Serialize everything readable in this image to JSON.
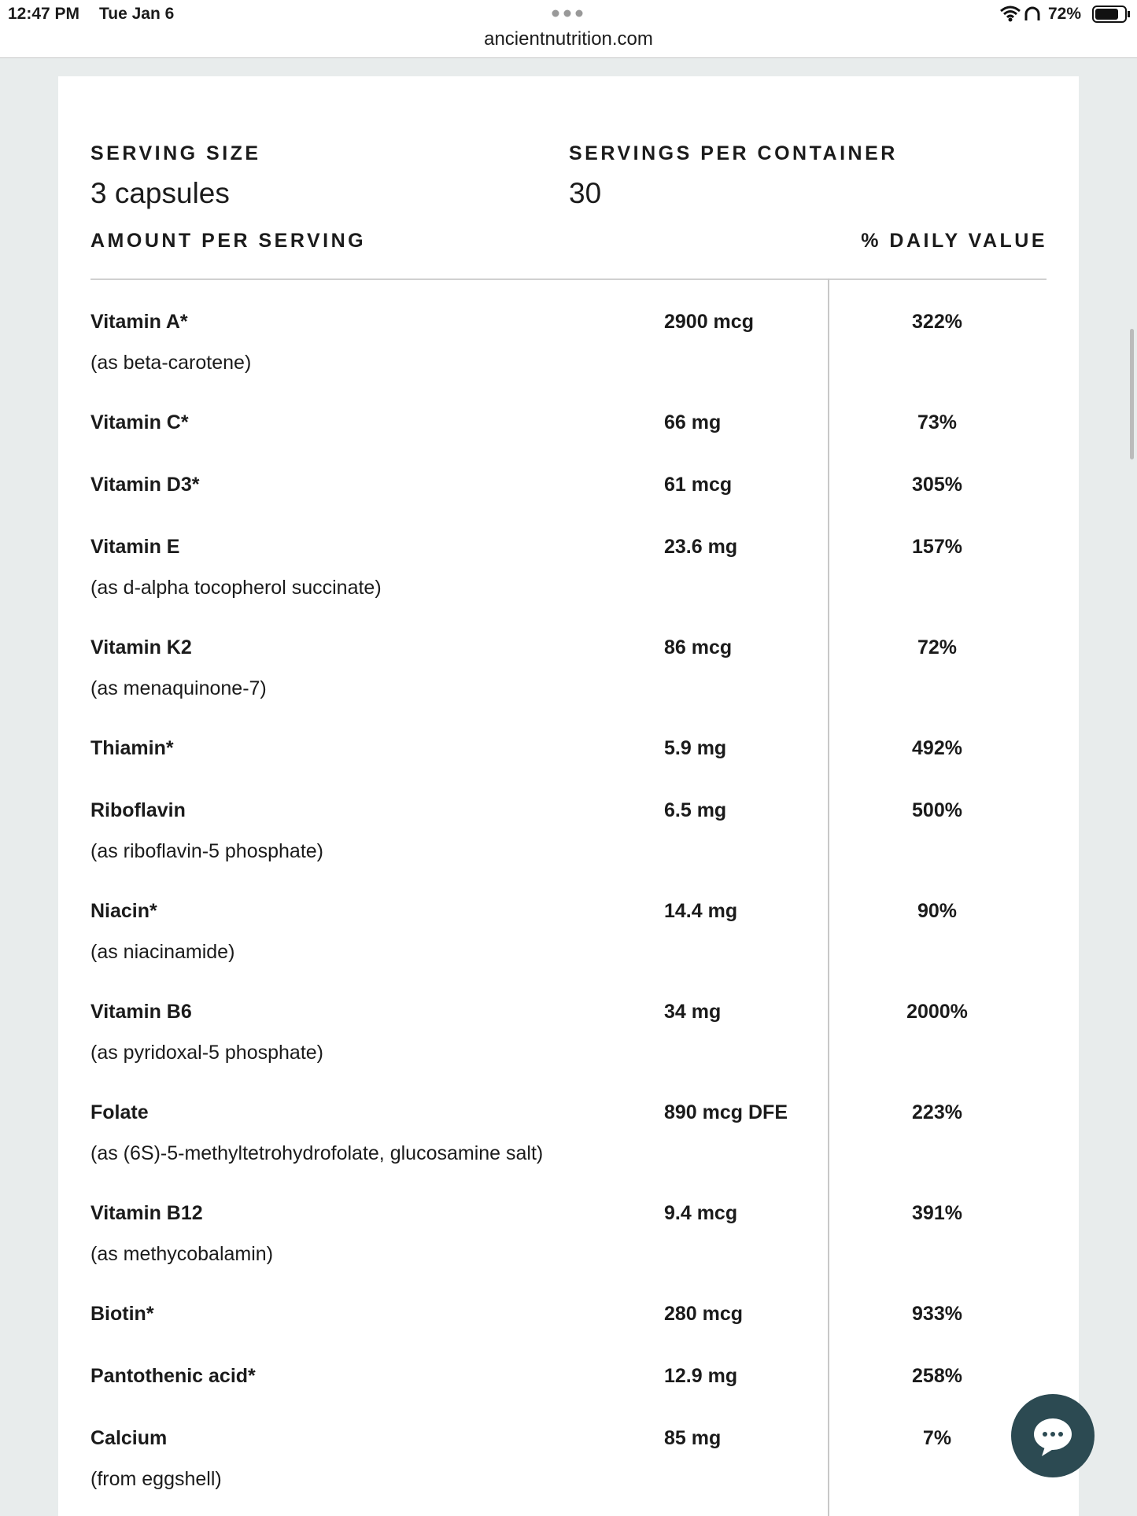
{
  "status_bar": {
    "time": "12:47 PM",
    "date": "Tue Jan 6",
    "url": "ancientnutrition.com",
    "battery": "72%"
  },
  "header": {
    "serving_size_label": "SERVING SIZE",
    "serving_size": "3 capsules",
    "servings_label": "SERVINGS PER CONTAINER",
    "servings": "30",
    "amount_label": "AMOUNT PER SERVING",
    "dv_label": "% DAILY VALUE"
  },
  "rows": [
    {
      "name": "Vitamin A*",
      "source": "(as beta-carotene)",
      "amount": "2900 mcg",
      "dv": "322%"
    },
    {
      "name": "Vitamin C*",
      "amount": "66 mg",
      "dv": "73%"
    },
    {
      "name": "Vitamin D3*",
      "amount": "61 mcg",
      "dv": "305%"
    },
    {
      "name": "Vitamin E",
      "source": "(as d-alpha tocopherol succinate)",
      "amount": "23.6 mg",
      "dv": "157%"
    },
    {
      "name": "Vitamin K2",
      "source": "(as menaquinone-7)",
      "amount": "86 mcg",
      "dv": "72%"
    },
    {
      "name": "Thiamin*",
      "amount": "5.9 mg",
      "dv": "492%"
    },
    {
      "name": "Riboflavin",
      "source": "(as riboflavin-5 phosphate)",
      "amount": "6.5 mg",
      "dv": "500%"
    },
    {
      "name": "Niacin*",
      "source": "(as niacinamide)",
      "amount": "14.4 mg",
      "dv": "90%"
    },
    {
      "name": "Vitamin B6",
      "source": "(as pyridoxal-5 phosphate)",
      "amount": "34 mg",
      "dv": "2000%"
    },
    {
      "name": "Folate",
      "source": "(as (6S)-5-methyltetrohydrofolate, glucosamine salt)",
      "amount": "890 mcg DFE",
      "dv": "223%"
    },
    {
      "name": "Vitamin B12",
      "source": "(as methycobalamin)",
      "amount": "9.4 mcg",
      "dv": "391%"
    },
    {
      "name": "Biotin*",
      "amount": "280 mcg",
      "dv": "933%"
    },
    {
      "name": "Pantothenic acid*",
      "amount": "12.9 mg",
      "dv": "258%"
    },
    {
      "name": "Calcium",
      "source": "(from eggshell)",
      "amount": "85 mg",
      "dv": "7%"
    }
  ]
}
